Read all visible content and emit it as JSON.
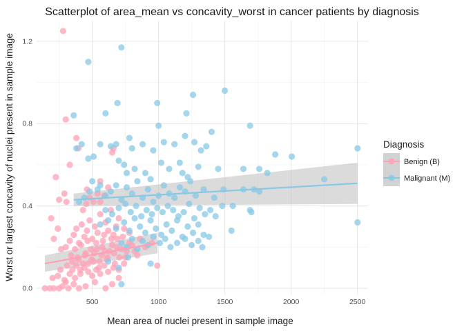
{
  "chart_data": {
    "type": "scatter",
    "title": "Scatterplot of area_mean vs concavity_worst in cancer patients by diagnosis",
    "xlabel": "Mean area of nuclei present in sample image",
    "ylabel": "Worst or largest concavity of nuclei present in sample image",
    "xlim": [
      80,
      2580
    ],
    "ylim": [
      -0.03,
      1.3
    ],
    "xticks": [
      500,
      1000,
      1500,
      2000,
      2500
    ],
    "yticks": [
      0.0,
      0.4,
      0.8,
      1.2
    ],
    "ytick_labels": [
      "0.0",
      "0.4",
      "0.8",
      "1.2"
    ],
    "grid": true,
    "legend": {
      "title": "Diagnosis",
      "position": "right"
    },
    "series": [
      {
        "name": "Benign (B)",
        "color": "#ffa0b4",
        "trend": {
          "x": [
            143,
            992
          ],
          "y": [
            0.12,
            0.22
          ],
          "ci_low": [
            0.08,
            0.17
          ],
          "ci_high": [
            0.16,
            0.27
          ]
        },
        "points": [
          [
            143,
            0.0
          ],
          [
            180,
            0.0
          ],
          [
            210,
            0.0
          ],
          [
            250,
            0.0
          ],
          [
            275,
            0.01
          ],
          [
            300,
            0.03
          ],
          [
            320,
            0.0
          ],
          [
            360,
            0.02
          ],
          [
            400,
            0.0
          ],
          [
            450,
            0.01
          ],
          [
            520,
            0.03
          ],
          [
            600,
            0.0
          ],
          [
            650,
            0.02
          ],
          [
            700,
            0.05
          ],
          [
            200,
            0.05
          ],
          [
            240,
            0.06
          ],
          [
            260,
            0.09
          ],
          [
            290,
            0.04
          ],
          [
            310,
            0.11
          ],
          [
            330,
            0.07
          ],
          [
            350,
            0.13
          ],
          [
            370,
            0.05
          ],
          [
            390,
            0.15
          ],
          [
            410,
            0.09
          ],
          [
            430,
            0.12
          ],
          [
            450,
            0.17
          ],
          [
            470,
            0.08
          ],
          [
            490,
            0.19
          ],
          [
            510,
            0.13
          ],
          [
            530,
            0.22
          ],
          [
            550,
            0.1
          ],
          [
            570,
            0.16
          ],
          [
            590,
            0.26
          ],
          [
            610,
            0.14
          ],
          [
            630,
            0.18
          ],
          [
            650,
            0.21
          ],
          [
            670,
            0.12
          ],
          [
            690,
            0.24
          ],
          [
            720,
            0.19
          ],
          [
            750,
            0.15
          ],
          [
            780,
            0.22
          ],
          [
            820,
            0.18
          ],
          [
            860,
            0.24
          ],
          [
            900,
            0.2
          ],
          [
            950,
            0.22
          ],
          [
            990,
            0.11
          ],
          [
            300,
            0.2
          ],
          [
            330,
            0.23
          ],
          [
            360,
            0.26
          ],
          [
            380,
            0.29
          ],
          [
            400,
            0.22
          ],
          [
            420,
            0.31
          ],
          [
            440,
            0.25
          ],
          [
            460,
            0.28
          ],
          [
            480,
            0.33
          ],
          [
            500,
            0.24
          ],
          [
            520,
            0.3
          ],
          [
            540,
            0.27
          ],
          [
            560,
            0.36
          ],
          [
            580,
            0.23
          ],
          [
            600,
            0.32
          ],
          [
            620,
            0.28
          ],
          [
            640,
            0.38
          ],
          [
            660,
            0.26
          ],
          [
            680,
            0.3
          ],
          [
            700,
            0.34
          ],
          [
            740,
            0.29
          ],
          [
            780,
            0.27
          ],
          [
            340,
            0.16
          ],
          [
            370,
            0.19
          ],
          [
            395,
            0.14
          ],
          [
            415,
            0.21
          ],
          [
            445,
            0.16
          ],
          [
            465,
            0.23
          ],
          [
            495,
            0.14
          ],
          [
            515,
            0.17
          ],
          [
            535,
            0.19
          ],
          [
            555,
            0.13
          ],
          [
            575,
            0.2
          ],
          [
            595,
            0.18
          ],
          [
            615,
            0.15
          ],
          [
            645,
            0.24
          ],
          [
            665,
            0.17
          ],
          [
            685,
            0.2
          ],
          [
            705,
            0.15
          ],
          [
            730,
            0.25
          ],
          [
            760,
            0.18
          ],
          [
            800,
            0.21
          ],
          [
            840,
            0.16
          ],
          [
            350,
            0.09
          ],
          [
            380,
            0.11
          ],
          [
            410,
            0.07
          ],
          [
            440,
            0.1
          ],
          [
            470,
            0.12
          ],
          [
            500,
            0.06
          ],
          [
            530,
            0.09
          ],
          [
            560,
            0.07
          ],
          [
            590,
            0.11
          ],
          [
            620,
            0.08
          ],
          [
            660,
            0.1
          ],
          [
            700,
            0.09
          ],
          [
            740,
            0.12
          ],
          [
            225,
            0.54
          ],
          [
            250,
            0.43
          ],
          [
            290,
            0.46
          ],
          [
            305,
            0.42
          ],
          [
            330,
            0.6
          ],
          [
            380,
            0.73
          ],
          [
            395,
            0.68
          ],
          [
            460,
            0.48
          ],
          [
            480,
            0.44
          ],
          [
            510,
            0.42
          ],
          [
            560,
            0.52
          ],
          [
            590,
            0.45
          ],
          [
            620,
            0.49
          ],
          [
            650,
            0.66
          ],
          [
            660,
            0.68
          ],
          [
            280,
            1.25
          ],
          [
            300,
            0.82
          ],
          [
            455,
            0.41
          ],
          [
            540,
            0.46
          ],
          [
            430,
            0.38
          ],
          [
            560,
            0.42
          ],
          [
            190,
            0.34
          ],
          [
            210,
            0.24
          ],
          [
            240,
            0.29
          ],
          [
            265,
            0.19
          ]
        ]
      },
      {
        "name": "Malignant (M)",
        "color": "#87c8e6",
        "trend": {
          "x": [
            360,
            2501
          ],
          "y": [
            0.43,
            0.51
          ],
          "ci_low": [
            0.4,
            0.41
          ],
          "ci_high": [
            0.46,
            0.61
          ]
        },
        "points": [
          [
            470,
            1.1
          ],
          [
            720,
            1.17
          ],
          [
            1500,
            0.96
          ],
          [
            1260,
            0.94
          ],
          [
            690,
            0.9
          ],
          [
            990,
            0.9
          ],
          [
            1210,
            0.85
          ],
          [
            360,
            0.84
          ],
          [
            600,
            0.85
          ],
          [
            1000,
            0.79
          ],
          [
            1690,
            0.79
          ],
          [
            1400,
            0.76
          ],
          [
            560,
            0.7
          ],
          [
            640,
            0.69
          ],
          [
            680,
            0.7
          ],
          [
            780,
            0.73
          ],
          [
            800,
            0.68
          ],
          [
            880,
            0.7
          ],
          [
            960,
            0.67
          ],
          [
            1040,
            0.71
          ],
          [
            1120,
            0.7
          ],
          [
            1200,
            0.74
          ],
          [
            1270,
            0.71
          ],
          [
            1320,
            0.67
          ],
          [
            1360,
            0.69
          ],
          [
            1880,
            0.65
          ],
          [
            2005,
            0.64
          ],
          [
            2501,
            0.68
          ],
          [
            380,
            0.68
          ],
          [
            420,
            0.7
          ],
          [
            470,
            0.63
          ],
          [
            510,
            0.64
          ],
          [
            700,
            0.62
          ],
          [
            740,
            0.6
          ],
          [
            760,
            0.56
          ],
          [
            820,
            0.58
          ],
          [
            900,
            0.56
          ],
          [
            940,
            0.53
          ],
          [
            1020,
            0.61
          ],
          [
            1080,
            0.58
          ],
          [
            1160,
            0.61
          ],
          [
            1180,
            0.56
          ],
          [
            1220,
            0.54
          ],
          [
            1300,
            0.59
          ],
          [
            1450,
            0.58
          ],
          [
            1640,
            0.58
          ],
          [
            1760,
            0.58
          ],
          [
            1820,
            0.56
          ],
          [
            400,
            0.42
          ],
          [
            440,
            0.44
          ],
          [
            480,
            0.47
          ],
          [
            500,
            0.52
          ],
          [
            540,
            0.48
          ],
          [
            560,
            0.5
          ],
          [
            600,
            0.45
          ],
          [
            640,
            0.47
          ],
          [
            680,
            0.5
          ],
          [
            720,
            0.43
          ],
          [
            760,
            0.49
          ],
          [
            800,
            0.46
          ],
          [
            840,
            0.52
          ],
          [
            880,
            0.44
          ],
          [
            920,
            0.48
          ],
          [
            960,
            0.42
          ],
          [
            1000,
            0.45
          ],
          [
            1040,
            0.5
          ],
          [
            1080,
            0.46
          ],
          [
            1120,
            0.44
          ],
          [
            1160,
            0.49
          ],
          [
            1200,
            0.47
          ],
          [
            1240,
            0.52
          ],
          [
            1280,
            0.45
          ],
          [
            1340,
            0.48
          ],
          [
            1420,
            0.44
          ],
          [
            1490,
            0.48
          ],
          [
            1640,
            0.48
          ],
          [
            1720,
            0.48
          ],
          [
            1760,
            0.47
          ],
          [
            2250,
            0.53
          ],
          [
            600,
            0.38
          ],
          [
            650,
            0.36
          ],
          [
            700,
            0.39
          ],
          [
            750,
            0.41
          ],
          [
            790,
            0.37
          ],
          [
            830,
            0.4
          ],
          [
            870,
            0.35
          ],
          [
            910,
            0.38
          ],
          [
            950,
            0.36
          ],
          [
            990,
            0.39
          ],
          [
            1030,
            0.37
          ],
          [
            1070,
            0.4
          ],
          [
            1110,
            0.38
          ],
          [
            1150,
            0.35
          ],
          [
            1190,
            0.37
          ],
          [
            1230,
            0.41
          ],
          [
            1270,
            0.34
          ],
          [
            1310,
            0.39
          ],
          [
            1350,
            0.36
          ],
          [
            1390,
            0.38
          ],
          [
            1430,
            0.35
          ],
          [
            1480,
            0.4
          ],
          [
            1690,
            0.38
          ],
          [
            1700,
            0.37
          ],
          [
            1560,
            0.4
          ],
          [
            560,
            0.31
          ],
          [
            620,
            0.33
          ],
          [
            680,
            0.29
          ],
          [
            740,
            0.32
          ],
          [
            780,
            0.28
          ],
          [
            820,
            0.34
          ],
          [
            860,
            0.3
          ],
          [
            900,
            0.27
          ],
          [
            940,
            0.33
          ],
          [
            980,
            0.29
          ],
          [
            1020,
            0.26
          ],
          [
            1060,
            0.31
          ],
          [
            1100,
            0.28
          ],
          [
            1140,
            0.33
          ],
          [
            1180,
            0.25
          ],
          [
            1220,
            0.3
          ],
          [
            1260,
            0.27
          ],
          [
            1300,
            0.31
          ],
          [
            1340,
            0.26
          ],
          [
            1550,
            0.28
          ],
          [
            2501,
            0.32
          ],
          [
            720,
            0.22
          ],
          [
            760,
            0.2
          ],
          [
            800,
            0.24
          ],
          [
            840,
            0.19
          ],
          [
            880,
            0.23
          ],
          [
            920,
            0.21
          ],
          [
            960,
            0.25
          ],
          [
            1010,
            0.22
          ],
          [
            1050,
            0.24
          ],
          [
            1090,
            0.2
          ],
          [
            1140,
            0.22
          ],
          [
            1200,
            0.24
          ],
          [
            1250,
            0.21
          ],
          [
            1300,
            0.23
          ],
          [
            1330,
            0.2
          ],
          [
            1380,
            0.25
          ],
          [
            620,
            0.13
          ],
          [
            700,
            0.1
          ],
          [
            770,
            0.15
          ],
          [
            940,
            0.12
          ],
          [
            720,
            0.02
          ]
        ]
      }
    ]
  }
}
